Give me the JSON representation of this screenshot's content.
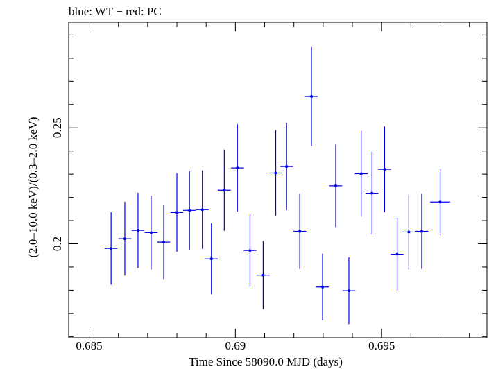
{
  "chart_data": {
    "type": "scatter",
    "title": "blue: WT − red: PC",
    "xlabel": "Time Since 58090.0 MJD (days)",
    "ylabel": "(2.0–10.0 keV)/(0.3–2.0 keV)",
    "xlim": [
      0.6843,
      0.6986
    ],
    "ylim": [
      0.1595,
      0.2955
    ],
    "x_ticks": [
      0.685,
      0.69,
      0.695
    ],
    "x_tick_labels": [
      "0.685",
      "0.69",
      "0.695"
    ],
    "y_ticks": [
      0.2,
      0.25
    ],
    "y_tick_labels": [
      "0.2",
      "0.25"
    ],
    "grid": false,
    "series": [
      {
        "color": "#0000ee",
        "points": [
          {
            "x": 0.68575,
            "xerr": 0.00022,
            "y": 0.198,
            "yerr": 0.0156
          },
          {
            "x": 0.68622,
            "xerr": 0.00022,
            "y": 0.2022,
            "yerr": 0.0159
          },
          {
            "x": 0.68667,
            "xerr": 0.00022,
            "y": 0.2058,
            "yerr": 0.0162
          },
          {
            "x": 0.68712,
            "xerr": 0.00022,
            "y": 0.2048,
            "yerr": 0.0159
          },
          {
            "x": 0.68755,
            "xerr": 0.00022,
            "y": 0.2007,
            "yerr": 0.0159
          },
          {
            "x": 0.688,
            "xerr": 0.00022,
            "y": 0.2135,
            "yerr": 0.0169
          },
          {
            "x": 0.68843,
            "xerr": 0.00022,
            "y": 0.2144,
            "yerr": 0.0169
          },
          {
            "x": 0.68887,
            "xerr": 0.00022,
            "y": 0.2147,
            "yerr": 0.0169
          },
          {
            "x": 0.68918,
            "xerr": 0.00022,
            "y": 0.1935,
            "yerr": 0.0153
          },
          {
            "x": 0.68962,
            "xerr": 0.00022,
            "y": 0.2231,
            "yerr": 0.0175
          },
          {
            "x": 0.69007,
            "xerr": 0.00022,
            "y": 0.2327,
            "yerr": 0.0188
          },
          {
            "x": 0.6905,
            "xerr": 0.00022,
            "y": 0.1971,
            "yerr": 0.0156
          },
          {
            "x": 0.69095,
            "xerr": 0.00022,
            "y": 0.1865,
            "yerr": 0.0147
          },
          {
            "x": 0.69138,
            "xerr": 0.00022,
            "y": 0.2305,
            "yerr": 0.0185
          },
          {
            "x": 0.69175,
            "xerr": 0.00022,
            "y": 0.2333,
            "yerr": 0.0188
          },
          {
            "x": 0.6922,
            "xerr": 0.00022,
            "y": 0.2054,
            "yerr": 0.0162
          },
          {
            "x": 0.6926,
            "xerr": 0.00022,
            "y": 0.2635,
            "yerr": 0.0213
          },
          {
            "x": 0.69298,
            "xerr": 0.00022,
            "y": 0.1814,
            "yerr": 0.0144
          },
          {
            "x": 0.69343,
            "xerr": 0.00022,
            "y": 0.225,
            "yerr": 0.0178
          },
          {
            "x": 0.69388,
            "xerr": 0.00022,
            "y": 0.1798,
            "yerr": 0.0144
          },
          {
            "x": 0.6943,
            "xerr": 0.00022,
            "y": 0.2302,
            "yerr": 0.0185
          },
          {
            "x": 0.69467,
            "xerr": 0.00022,
            "y": 0.2218,
            "yerr": 0.0178
          },
          {
            "x": 0.6951,
            "xerr": 0.00022,
            "y": 0.2321,
            "yerr": 0.0185
          },
          {
            "x": 0.69553,
            "xerr": 0.00022,
            "y": 0.1955,
            "yerr": 0.0156
          },
          {
            "x": 0.69593,
            "xerr": 0.00022,
            "y": 0.2051,
            "yerr": 0.0162
          },
          {
            "x": 0.69637,
            "xerr": 0.00022,
            "y": 0.2054,
            "yerr": 0.0162
          },
          {
            "x": 0.697,
            "xerr": 0.00034,
            "y": 0.218,
            "yerr": 0.0143
          }
        ]
      }
    ]
  }
}
